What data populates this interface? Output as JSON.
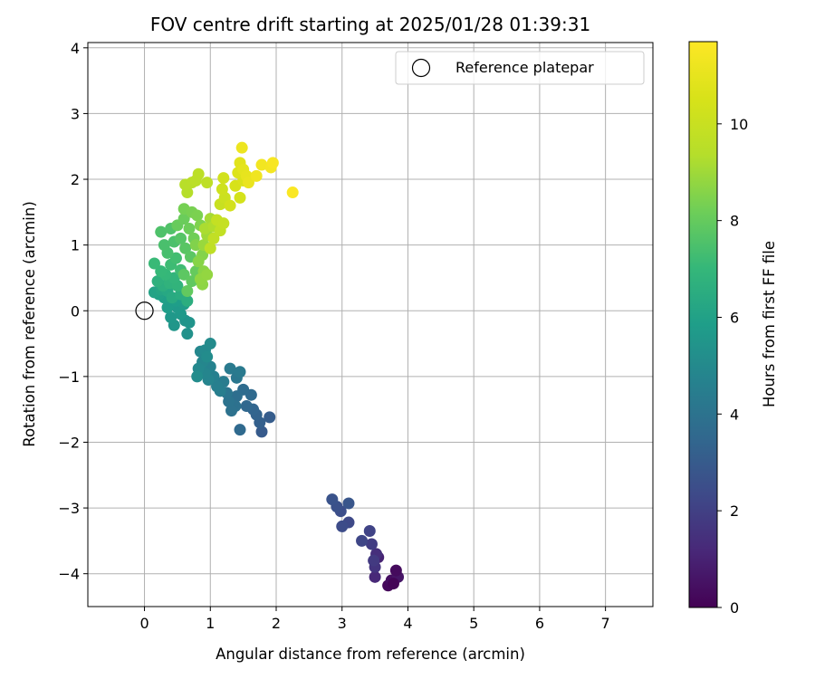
{
  "chart_data": {
    "type": "scatter",
    "title": "FOV centre drift starting at 2025/01/28 01:39:31",
    "xlabel": "Angular distance from reference (arcmin)",
    "ylabel": "Rotation from reference (arcmin)",
    "xlim": [
      -0.86,
      7.72
    ],
    "ylim": [
      -4.5,
      4.08
    ],
    "xticks": [
      0,
      1,
      2,
      3,
      4,
      5,
      6,
      7
    ],
    "yticks": [
      -4,
      -3,
      -2,
      -1,
      0,
      1,
      2,
      3,
      4
    ],
    "grid": true,
    "legend": {
      "placement": "top-right",
      "label": "Reference platepar",
      "marker": "open-circle"
    },
    "reference_point": {
      "x": 0,
      "y": 0
    },
    "colorbar": {
      "label": "Hours from first FF file",
      "min": 0,
      "max": 11.7,
      "ticks": [
        0,
        2,
        4,
        6,
        8,
        10
      ],
      "colormap": "viridis"
    },
    "points": [
      {
        "x": 3.7,
        "y": -4.18,
        "h": 0.2
      },
      {
        "x": 3.75,
        "y": -4.1,
        "h": 0.4
      },
      {
        "x": 3.85,
        "y": -4.05,
        "h": 0.6
      },
      {
        "x": 3.82,
        "y": -3.95,
        "h": 0.3
      },
      {
        "x": 3.78,
        "y": -4.15,
        "h": 0.1
      },
      {
        "x": 3.55,
        "y": -3.75,
        "h": 1.0
      },
      {
        "x": 3.5,
        "y": -4.05,
        "h": 1.2
      },
      {
        "x": 3.52,
        "y": -3.7,
        "h": 1.4
      },
      {
        "x": 3.5,
        "y": -3.9,
        "h": 1.6
      },
      {
        "x": 3.48,
        "y": -3.8,
        "h": 1.8
      },
      {
        "x": 3.45,
        "y": -3.55,
        "h": 1.9
      },
      {
        "x": 3.42,
        "y": -3.35,
        "h": 2.1
      },
      {
        "x": 3.3,
        "y": -3.5,
        "h": 2.2
      },
      {
        "x": 3.1,
        "y": -3.22,
        "h": 2.3
      },
      {
        "x": 3.0,
        "y": -3.28,
        "h": 2.4
      },
      {
        "x": 2.98,
        "y": -3.05,
        "h": 2.5
      },
      {
        "x": 2.92,
        "y": -2.98,
        "h": 2.6
      },
      {
        "x": 2.85,
        "y": -2.87,
        "h": 2.7
      },
      {
        "x": 3.1,
        "y": -2.93,
        "h": 2.8
      },
      {
        "x": 1.78,
        "y": -1.84,
        "h": 3.0
      },
      {
        "x": 1.9,
        "y": -1.62,
        "h": 3.1
      },
      {
        "x": 1.75,
        "y": -1.7,
        "h": 3.2
      },
      {
        "x": 1.7,
        "y": -1.58,
        "h": 3.3
      },
      {
        "x": 1.65,
        "y": -1.5,
        "h": 3.4
      },
      {
        "x": 1.55,
        "y": -1.45,
        "h": 3.5
      },
      {
        "x": 1.45,
        "y": -1.81,
        "h": 3.6
      },
      {
        "x": 1.62,
        "y": -1.28,
        "h": 3.6
      },
      {
        "x": 1.5,
        "y": -1.2,
        "h": 3.7
      },
      {
        "x": 1.4,
        "y": -1.3,
        "h": 3.8
      },
      {
        "x": 1.38,
        "y": -1.45,
        "h": 3.9
      },
      {
        "x": 1.32,
        "y": -1.52,
        "h": 3.95
      },
      {
        "x": 1.28,
        "y": -1.38,
        "h": 4.0
      },
      {
        "x": 1.25,
        "y": -1.25,
        "h": 4.1
      },
      {
        "x": 1.4,
        "y": -1.02,
        "h": 4.2
      },
      {
        "x": 1.3,
        "y": -0.88,
        "h": 4.3
      },
      {
        "x": 1.45,
        "y": -0.93,
        "h": 4.3
      },
      {
        "x": 1.2,
        "y": -1.08,
        "h": 4.4
      },
      {
        "x": 1.15,
        "y": -1.22,
        "h": 4.5
      },
      {
        "x": 1.1,
        "y": -1.15,
        "h": 4.55
      },
      {
        "x": 1.05,
        "y": -1.0,
        "h": 4.6
      },
      {
        "x": 1.0,
        "y": -0.85,
        "h": 4.7
      },
      {
        "x": 0.97,
        "y": -1.05,
        "h": 4.75
      },
      {
        "x": 0.92,
        "y": -0.95,
        "h": 4.8
      },
      {
        "x": 0.88,
        "y": -0.78,
        "h": 4.85
      },
      {
        "x": 0.85,
        "y": -0.62,
        "h": 4.9
      },
      {
        "x": 0.82,
        "y": -0.88,
        "h": 4.95
      },
      {
        "x": 0.92,
        "y": -0.6,
        "h": 5.0
      },
      {
        "x": 1.0,
        "y": -0.5,
        "h": 5.05
      },
      {
        "x": 0.95,
        "y": -0.7,
        "h": 5.1
      },
      {
        "x": 0.8,
        "y": -1.0,
        "h": 5.1
      },
      {
        "x": 0.65,
        "y": -0.35,
        "h": 5.3
      },
      {
        "x": 0.62,
        "y": -0.15,
        "h": 5.4
      },
      {
        "x": 0.68,
        "y": -0.18,
        "h": 5.45
      },
      {
        "x": 0.45,
        "y": -0.22,
        "h": 5.5
      },
      {
        "x": 0.4,
        "y": -0.1,
        "h": 5.6
      },
      {
        "x": 0.55,
        "y": -0.05,
        "h": 5.65
      },
      {
        "x": 0.5,
        "y": 0.05,
        "h": 5.7
      },
      {
        "x": 0.6,
        "y": 0.1,
        "h": 5.75
      },
      {
        "x": 0.35,
        "y": 0.05,
        "h": 5.8
      },
      {
        "x": 0.48,
        "y": 0.15,
        "h": 5.85
      },
      {
        "x": 0.3,
        "y": 0.2,
        "h": 5.9
      },
      {
        "x": 0.22,
        "y": 0.25,
        "h": 6.0
      },
      {
        "x": 0.15,
        "y": 0.28,
        "h": 6.1
      },
      {
        "x": 0.25,
        "y": 0.32,
        "h": 6.2
      },
      {
        "x": 0.35,
        "y": 0.3,
        "h": 6.3
      },
      {
        "x": 0.42,
        "y": 0.2,
        "h": 6.4
      },
      {
        "x": 0.55,
        "y": 0.25,
        "h": 6.5
      },
      {
        "x": 0.65,
        "y": 0.15,
        "h": 6.55
      },
      {
        "x": 0.28,
        "y": 0.38,
        "h": 6.6
      },
      {
        "x": 0.2,
        "y": 0.45,
        "h": 6.7
      },
      {
        "x": 0.38,
        "y": 0.42,
        "h": 6.8
      },
      {
        "x": 0.5,
        "y": 0.38,
        "h": 6.85
      },
      {
        "x": 0.45,
        "y": 0.5,
        "h": 6.9
      },
      {
        "x": 0.32,
        "y": 0.55,
        "h": 7.0
      },
      {
        "x": 0.25,
        "y": 0.6,
        "h": 7.05
      },
      {
        "x": 0.15,
        "y": 0.72,
        "h": 7.1
      },
      {
        "x": 0.4,
        "y": 0.7,
        "h": 7.2
      },
      {
        "x": 0.55,
        "y": 0.62,
        "h": 7.25
      },
      {
        "x": 0.48,
        "y": 0.8,
        "h": 7.3
      },
      {
        "x": 0.35,
        "y": 0.88,
        "h": 7.4
      },
      {
        "x": 0.3,
        "y": 1.0,
        "h": 7.45
      },
      {
        "x": 0.45,
        "y": 1.05,
        "h": 7.5
      },
      {
        "x": 0.25,
        "y": 1.2,
        "h": 7.55
      },
      {
        "x": 0.4,
        "y": 1.25,
        "h": 7.6
      },
      {
        "x": 0.55,
        "y": 1.1,
        "h": 7.7
      },
      {
        "x": 0.62,
        "y": 0.95,
        "h": 7.75
      },
      {
        "x": 0.7,
        "y": 0.82,
        "h": 7.8
      },
      {
        "x": 0.6,
        "y": 0.55,
        "h": 7.85
      },
      {
        "x": 0.72,
        "y": 0.45,
        "h": 7.9
      },
      {
        "x": 0.65,
        "y": 0.3,
        "h": 7.95
      },
      {
        "x": 0.78,
        "y": 0.6,
        "h": 8.0
      },
      {
        "x": 0.5,
        "y": 1.3,
        "h": 8.05
      },
      {
        "x": 0.6,
        "y": 1.4,
        "h": 8.1
      },
      {
        "x": 0.68,
        "y": 1.25,
        "h": 8.15
      },
      {
        "x": 0.75,
        "y": 1.1,
        "h": 8.2
      },
      {
        "x": 0.6,
        "y": 1.55,
        "h": 8.3
      },
      {
        "x": 0.72,
        "y": 1.5,
        "h": 8.35
      },
      {
        "x": 0.8,
        "y": 1.45,
        "h": 8.4
      },
      {
        "x": 0.85,
        "y": 1.3,
        "h": 8.45
      },
      {
        "x": 0.78,
        "y": 1.0,
        "h": 8.5
      },
      {
        "x": 0.88,
        "y": 0.85,
        "h": 8.55
      },
      {
        "x": 0.82,
        "y": 0.75,
        "h": 8.6
      },
      {
        "x": 0.9,
        "y": 0.6,
        "h": 8.65
      },
      {
        "x": 0.88,
        "y": 0.4,
        "h": 8.7
      },
      {
        "x": 0.85,
        "y": 0.48,
        "h": 8.75
      },
      {
        "x": 0.95,
        "y": 0.55,
        "h": 8.8
      },
      {
        "x": 0.9,
        "y": 1.0,
        "h": 8.9
      },
      {
        "x": 0.95,
        "y": 1.15,
        "h": 9.0
      },
      {
        "x": 1.0,
        "y": 1.4,
        "h": 9.1
      },
      {
        "x": 0.92,
        "y": 1.25,
        "h": 9.2
      },
      {
        "x": 1.05,
        "y": 1.28,
        "h": 9.3
      },
      {
        "x": 0.65,
        "y": 1.8,
        "h": 9.4
      },
      {
        "x": 0.62,
        "y": 1.92,
        "h": 9.45
      },
      {
        "x": 0.72,
        "y": 1.95,
        "h": 9.5
      },
      {
        "x": 0.78,
        "y": 1.98,
        "h": 9.55
      },
      {
        "x": 0.82,
        "y": 2.08,
        "h": 9.6
      },
      {
        "x": 0.95,
        "y": 1.95,
        "h": 9.65
      },
      {
        "x": 1.0,
        "y": 0.95,
        "h": 9.7
      },
      {
        "x": 1.05,
        "y": 1.1,
        "h": 9.75
      },
      {
        "x": 1.15,
        "y": 1.22,
        "h": 9.8
      },
      {
        "x": 1.1,
        "y": 1.38,
        "h": 9.85
      },
      {
        "x": 1.2,
        "y": 1.33,
        "h": 9.9
      },
      {
        "x": 1.15,
        "y": 1.62,
        "h": 10.0
      },
      {
        "x": 1.22,
        "y": 1.72,
        "h": 10.1
      },
      {
        "x": 1.18,
        "y": 1.85,
        "h": 10.2
      },
      {
        "x": 1.2,
        "y": 2.02,
        "h": 10.3
      },
      {
        "x": 1.3,
        "y": 1.6,
        "h": 10.35
      },
      {
        "x": 1.45,
        "y": 1.72,
        "h": 10.4
      },
      {
        "x": 1.38,
        "y": 1.9,
        "h": 10.5
      },
      {
        "x": 1.5,
        "y": 1.98,
        "h": 10.6
      },
      {
        "x": 1.42,
        "y": 2.1,
        "h": 10.7
      },
      {
        "x": 1.45,
        "y": 2.25,
        "h": 10.8
      },
      {
        "x": 1.5,
        "y": 2.15,
        "h": 10.9
      },
      {
        "x": 1.55,
        "y": 2.05,
        "h": 11.0
      },
      {
        "x": 1.58,
        "y": 1.95,
        "h": 11.1
      },
      {
        "x": 1.48,
        "y": 2.48,
        "h": 11.2
      },
      {
        "x": 1.7,
        "y": 2.05,
        "h": 11.3
      },
      {
        "x": 1.78,
        "y": 2.22,
        "h": 11.35
      },
      {
        "x": 1.92,
        "y": 2.18,
        "h": 11.4
      },
      {
        "x": 1.95,
        "y": 2.25,
        "h": 11.5
      },
      {
        "x": 2.25,
        "y": 1.8,
        "h": 11.6
      }
    ]
  }
}
